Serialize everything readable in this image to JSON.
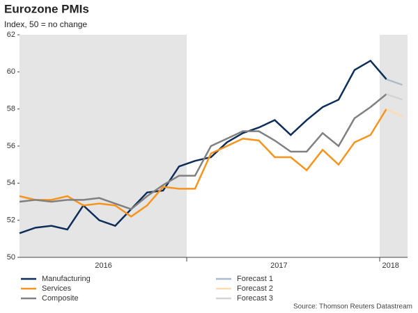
{
  "chart_data": {
    "type": "line",
    "title": "Eurozone PMIs",
    "subtitle": "Index, 50 = no change",
    "source": "Source: Thomson Reuters Datastream",
    "categories": [
      null,
      null,
      null,
      null,
      null,
      "2016",
      null,
      null,
      null,
      null,
      null,
      null,
      null,
      null,
      null,
      null,
      "2017",
      null,
      null,
      null,
      null,
      null,
      null,
      "2018",
      null
    ],
    "ylim": [
      50,
      62
    ],
    "yticks": [
      50,
      52,
      54,
      56,
      58,
      60,
      62
    ],
    "series": [
      {
        "name": "Manufacturing",
        "color": "#0d2d5a",
        "values": [
          51.3,
          51.6,
          51.7,
          51.5,
          52.8,
          52.0,
          51.7,
          52.6,
          53.5,
          53.6,
          54.9,
          55.2,
          55.4,
          56.2,
          56.7,
          57.0,
          57.4,
          56.6,
          57.4,
          58.1,
          58.5,
          60.1,
          60.6,
          59.6,
          null
        ]
      },
      {
        "name": "Services",
        "color": "#f7941d",
        "values": [
          53.3,
          53.1,
          53.1,
          53.3,
          52.8,
          52.9,
          52.8,
          52.2,
          52.8,
          53.8,
          53.7,
          53.7,
          55.6,
          56.0,
          56.4,
          56.3,
          55.4,
          55.4,
          54.7,
          55.8,
          55.0,
          56.2,
          56.6,
          58.0,
          null
        ]
      },
      {
        "name": "Composite",
        "color": "#808080",
        "values": [
          53.0,
          53.1,
          53.0,
          53.1,
          53.1,
          53.2,
          52.9,
          52.6,
          53.3,
          53.9,
          54.4,
          54.4,
          56.0,
          56.4,
          56.8,
          56.8,
          56.3,
          55.7,
          55.7,
          56.7,
          56.0,
          57.5,
          58.1,
          58.8,
          null
        ]
      },
      {
        "name": "Forecast 1",
        "color": "#a9bccd",
        "values": [
          null,
          null,
          null,
          null,
          null,
          null,
          null,
          null,
          null,
          null,
          null,
          null,
          null,
          null,
          null,
          null,
          null,
          null,
          null,
          null,
          null,
          null,
          null,
          59.6,
          59.3
        ]
      },
      {
        "name": "Forecast 2",
        "color": "#fddcb0",
        "values": [
          null,
          null,
          null,
          null,
          null,
          null,
          null,
          null,
          null,
          null,
          null,
          null,
          null,
          null,
          null,
          null,
          null,
          null,
          null,
          null,
          null,
          null,
          null,
          58.0,
          57.6
        ]
      },
      {
        "name": "Forecast 3",
        "color": "#d4d4d4",
        "values": [
          null,
          null,
          null,
          null,
          null,
          null,
          null,
          null,
          null,
          null,
          null,
          null,
          null,
          null,
          null,
          null,
          null,
          null,
          null,
          null,
          null,
          null,
          null,
          58.8,
          58.5
        ]
      }
    ]
  }
}
